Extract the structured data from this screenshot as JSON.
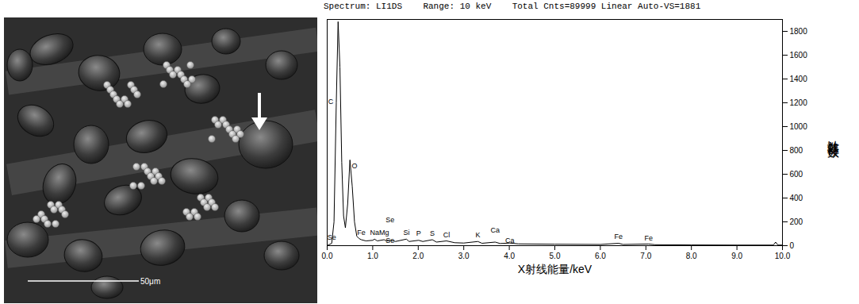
{
  "sem_image": {
    "scale_bar": "50μm"
  },
  "chart_data": {
    "type": "line",
    "header": [
      "Spectrum: LI1DS",
      "Range: 10 keV",
      "Total Cnts=89999 Linear Auto-VS=1881"
    ],
    "xlabel": "X射线能量/keV",
    "ylabel": "计数器读数",
    "x": [
      0.0,
      0.1,
      0.15,
      0.2,
      0.24,
      0.28,
      0.32,
      0.36,
      0.4,
      0.45,
      0.5,
      0.55,
      0.6,
      0.65,
      0.7,
      0.75,
      0.85,
      1.0,
      1.04,
      1.1,
      1.25,
      1.3,
      1.4,
      1.5,
      1.74,
      1.8,
      2.01,
      2.1,
      2.31,
      2.4,
      2.62,
      2.8,
      3.0,
      3.31,
      3.4,
      3.69,
      3.8,
      4.01,
      4.2,
      5.0,
      6.0,
      6.4,
      6.5,
      7.06,
      7.2,
      8.0,
      9.0,
      9.8,
      9.85,
      9.9,
      10.0
    ],
    "values": [
      0,
      20,
      200,
      1200,
      1881,
      1500,
      700,
      250,
      150,
      350,
      720,
      500,
      200,
      80,
      60,
      50,
      40,
      45,
      55,
      40,
      50,
      40,
      45,
      35,
      55,
      35,
      45,
      35,
      50,
      30,
      40,
      25,
      22,
      35,
      20,
      30,
      18,
      22,
      15,
      12,
      10,
      20,
      10,
      14,
      8,
      6,
      5,
      5,
      30,
      5,
      5
    ],
    "color": "#000000",
    "xlim": [
      0,
      10
    ],
    "xticks": [
      {
        "value": 0,
        "label": "0.0"
      },
      {
        "value": 1,
        "label": "1.0"
      },
      {
        "value": 2,
        "label": "2.0"
      },
      {
        "value": 3,
        "label": "3.0"
      },
      {
        "value": 4,
        "label": "4.0"
      },
      {
        "value": 5,
        "label": "5.0"
      },
      {
        "value": 6,
        "label": "6.0"
      },
      {
        "value": 7,
        "label": "7.0"
      },
      {
        "value": 8,
        "label": "8.0"
      },
      {
        "value": 9,
        "label": "9.0"
      },
      {
        "value": 10,
        "label": "10.0"
      }
    ],
    "ylim": [
      0,
      1900
    ],
    "yticks": [
      0,
      200,
      400,
      600,
      800,
      1000,
      1200,
      1400,
      1600,
      1800
    ],
    "grid": false,
    "annotations": [
      {
        "text": "C",
        "x": 0.08,
        "y": 1180
      },
      {
        "text": "O",
        "x": 0.6,
        "y": 640
      },
      {
        "text": "Se",
        "x": 1.38,
        "y": 190
      },
      {
        "text": "Se",
        "x": 0.1,
        "y": 45
      },
      {
        "text": "Fe",
        "x": 0.75,
        "y": 80
      },
      {
        "text": "Na",
        "x": 1.04,
        "y": 80
      },
      {
        "text": "Mg",
        "x": 1.25,
        "y": 80
      },
      {
        "text": "Se",
        "x": 1.38,
        "y": 15
      },
      {
        "text": "Si",
        "x": 1.74,
        "y": 80
      },
      {
        "text": "P",
        "x": 2.01,
        "y": 75
      },
      {
        "text": "S",
        "x": 2.31,
        "y": 75
      },
      {
        "text": "Cl",
        "x": 2.62,
        "y": 60
      },
      {
        "text": "K",
        "x": 3.31,
        "y": 60
      },
      {
        "text": "Ca",
        "x": 3.69,
        "y": 100
      },
      {
        "text": "Ca",
        "x": 4.01,
        "y": 15
      },
      {
        "text": "Fe",
        "x": 6.4,
        "y": 50
      },
      {
        "text": "Fe",
        "x": 7.06,
        "y": 35
      }
    ]
  }
}
